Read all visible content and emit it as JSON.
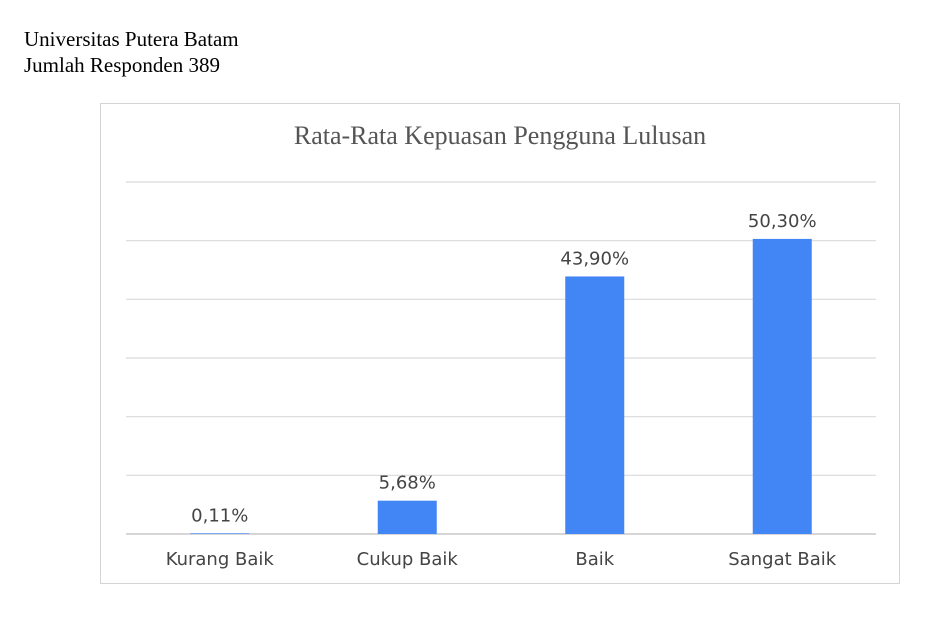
{
  "header": {
    "line1": "Universitas Putera Batam",
    "line2": "Jumlah Responden 389"
  },
  "chart_data": {
    "type": "bar",
    "title": "Rata-Rata Kepuasan Pengguna Lulusan",
    "categories": [
      "Kurang Baik",
      "Cukup Baik",
      "Baik",
      "Sangat Baik"
    ],
    "values": [
      0.11,
      5.68,
      43.9,
      50.3
    ],
    "data_labels": [
      "0,11%",
      "5,68%",
      "43,90%",
      "50,30%"
    ],
    "xlabel": "",
    "ylabel": "",
    "ylim": [
      0,
      60
    ],
    "grid": true,
    "legend": "none",
    "bar_color": "#4285f4",
    "grid_color": "#d9d9d9"
  }
}
